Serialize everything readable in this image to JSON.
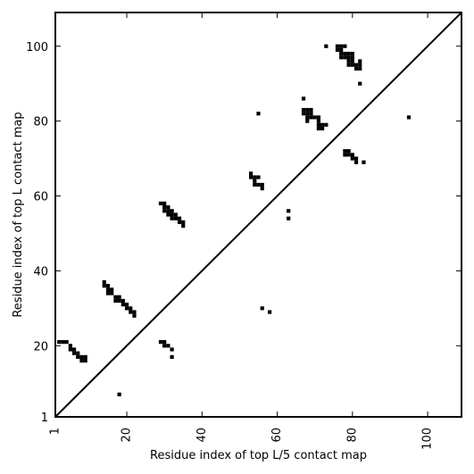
{
  "chart_data": {
    "type": "scatter",
    "xlabel": "Residue index of top L/5 contact map",
    "ylabel": "Residue index of top L contact map",
    "xlim": [
      1,
      109
    ],
    "ylim": [
      1,
      109
    ],
    "xticks": [
      1,
      20,
      40,
      60,
      80,
      100
    ],
    "yticks": [
      1,
      20,
      40,
      60,
      80,
      100
    ],
    "grid": false,
    "marker_color": "#000000",
    "diagonal_line": true,
    "upper_points": [
      [
        2,
        21
      ],
      [
        3,
        21
      ],
      [
        4,
        21
      ],
      [
        5,
        20
      ],
      [
        5,
        19
      ],
      [
        6,
        19
      ],
      [
        6,
        18
      ],
      [
        7,
        18
      ],
      [
        7,
        17
      ],
      [
        8,
        17
      ],
      [
        8,
        16
      ],
      [
        9,
        17
      ],
      [
        9,
        16
      ],
      [
        14,
        37
      ],
      [
        14,
        36
      ],
      [
        15,
        36
      ],
      [
        15,
        35
      ],
      [
        15,
        34
      ],
      [
        16,
        35
      ],
      [
        16,
        34
      ],
      [
        17,
        33
      ],
      [
        17,
        32
      ],
      [
        18,
        33
      ],
      [
        18,
        32
      ],
      [
        19,
        32
      ],
      [
        19,
        31
      ],
      [
        20,
        31
      ],
      [
        20,
        30
      ],
      [
        21,
        30
      ],
      [
        21,
        29
      ],
      [
        22,
        29
      ],
      [
        22,
        28
      ],
      [
        29,
        58
      ],
      [
        30,
        58
      ],
      [
        30,
        57
      ],
      [
        30,
        56
      ],
      [
        31,
        57
      ],
      [
        31,
        56
      ],
      [
        31,
        55
      ],
      [
        32,
        56
      ],
      [
        32,
        55
      ],
      [
        32,
        54
      ],
      [
        33,
        55
      ],
      [
        33,
        54
      ],
      [
        34,
        54
      ],
      [
        34,
        53
      ],
      [
        35,
        53
      ],
      [
        35,
        52
      ],
      [
        53,
        66
      ],
      [
        53,
        65
      ],
      [
        54,
        65
      ],
      [
        54,
        64
      ],
      [
        54,
        63
      ],
      [
        55,
        65
      ],
      [
        55,
        63
      ],
      [
        56,
        63
      ],
      [
        56,
        62
      ],
      [
        67,
        86
      ],
      [
        67,
        83
      ],
      [
        67,
        82
      ],
      [
        68,
        83
      ],
      [
        68,
        82
      ],
      [
        68,
        81
      ],
      [
        68,
        80
      ],
      [
        69,
        83
      ],
      [
        69,
        82
      ],
      [
        69,
        81
      ],
      [
        70,
        81
      ],
      [
        71,
        81
      ],
      [
        71,
        80
      ],
      [
        71,
        79
      ],
      [
        71,
        78
      ],
      [
        72,
        79
      ],
      [
        72,
        78
      ],
      [
        73,
        79
      ],
      [
        76,
        100
      ],
      [
        76,
        99
      ],
      [
        77,
        100
      ],
      [
        77,
        99
      ],
      [
        77,
        98
      ],
      [
        77,
        97
      ],
      [
        78,
        100
      ],
      [
        78,
        98
      ],
      [
        78,
        97
      ],
      [
        79,
        98
      ],
      [
        79,
        97
      ],
      [
        79,
        96
      ],
      [
        79,
        95
      ],
      [
        80,
        98
      ],
      [
        80,
        97
      ],
      [
        80,
        96
      ],
      [
        80,
        95
      ],
      [
        81,
        95
      ],
      [
        81,
        94
      ],
      [
        82,
        96
      ],
      [
        82,
        95
      ],
      [
        82,
        94
      ],
      [
        82,
        90
      ],
      [
        73,
        100
      ],
      [
        55,
        82
      ],
      [
        95,
        81
      ]
    ],
    "lower_points": [
      [
        18,
        7
      ],
      [
        29,
        21
      ],
      [
        30,
        21
      ],
      [
        30,
        20
      ],
      [
        31,
        20
      ],
      [
        32,
        19
      ],
      [
        32,
        17
      ],
      [
        56,
        30
      ],
      [
        58,
        29
      ],
      [
        63,
        56
      ],
      [
        63,
        54
      ],
      [
        78,
        72
      ],
      [
        78,
        71
      ],
      [
        79,
        72
      ],
      [
        79,
        71
      ],
      [
        80,
        71
      ],
      [
        80,
        70
      ],
      [
        81,
        70
      ],
      [
        81,
        69
      ],
      [
        83,
        69
      ]
    ]
  }
}
